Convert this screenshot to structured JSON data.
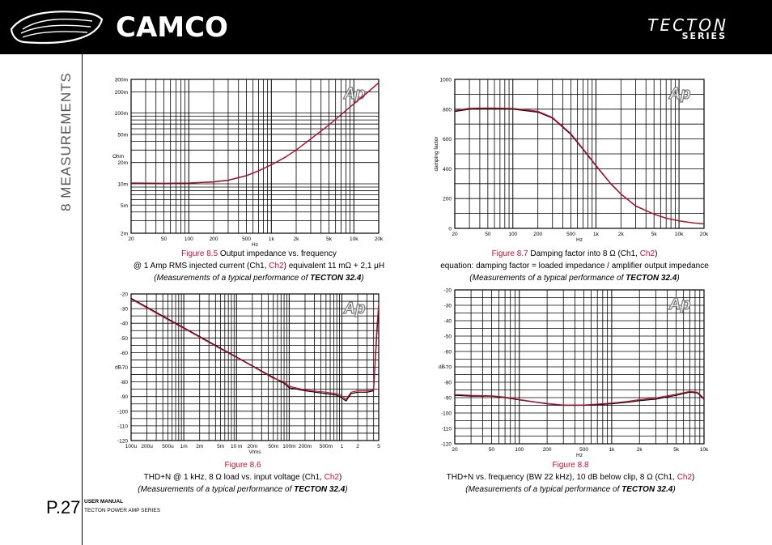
{
  "header": {
    "brand": "CAMCO",
    "series_title": "TECTON",
    "series_sub": "SERIES"
  },
  "section_title": "8 MEASUREMENTS",
  "page_number": "P.27",
  "footer": {
    "manual": "USER MANUAL",
    "manual_sub": "TECTON POWER AMP SERIES"
  },
  "colors": {
    "ch1": "#000000",
    "ch2": "#c8102e",
    "accent": "#c8102e"
  },
  "captions": {
    "fig85": {
      "fig": "Figure 8.5",
      "title": " Output impedance vs. frequency",
      "line2a": "@ 1 Amp RMS injected current (Ch1, ",
      "ch2": "Ch2",
      "line2b": ") equivalent 11 mΩ + 2,1 μH",
      "meas": "(Measurements of a typical performance of ",
      "model": "TECTON 32.4",
      "close": ")"
    },
    "fig87": {
      "fig": "Figure 8.7",
      "title": " Damping factor into 8 Ω (Ch1, ",
      "ch2": "Ch2",
      "title_end": ")",
      "line2": "equation: damping factor = loaded impedance / amplifier output impedance",
      "meas": "(Measurements of a typical performance of ",
      "model": "TECTON 32.4",
      "close": ")"
    },
    "fig86": {
      "fig": "Figure 8.6",
      "line2a": "THD+N @ 1 kHz, 8 Ω load  vs.  input voltage (Ch1, ",
      "ch2": "Ch2",
      "line2b": ")",
      "meas": "(Measurements of a typical performance of ",
      "model": "TECTON 32.4",
      "close": ")"
    },
    "fig88": {
      "fig": "Figure 8.8",
      "line2a": "THD+N vs. frequency (BW 22 kHz), 10 dB below clip, 8 Ω (Ch1, ",
      "ch2": "Ch2",
      "line2b": ")",
      "meas": "(Measurements of a typical performance of ",
      "model": "TECTON 32.4",
      "close": ")"
    }
  },
  "chart_data": [
    {
      "id": "fig85",
      "type": "line",
      "xscale": "log",
      "yscale": "log",
      "xlim": [
        20,
        20000
      ],
      "ylim": [
        0.002,
        0.3
      ],
      "xlabel": "Hz",
      "ylabel": "Ohm",
      "xticks": [
        [
          20,
          "20"
        ],
        [
          50,
          "50"
        ],
        [
          100,
          "100"
        ],
        [
          200,
          "200"
        ],
        [
          500,
          "500"
        ],
        [
          1000,
          "1k"
        ],
        [
          2000,
          "2k"
        ],
        [
          5000,
          "5k"
        ],
        [
          10000,
          "10k"
        ],
        [
          20000,
          "20k"
        ]
      ],
      "yticks": [
        [
          0.002,
          "2m"
        ],
        [
          0.005,
          "5m"
        ],
        [
          0.01,
          "10m"
        ],
        [
          0.02,
          "20m"
        ],
        [
          0.05,
          "50m"
        ],
        [
          0.1,
          "100m"
        ],
        [
          0.2,
          "200m"
        ],
        [
          0.3,
          "300m"
        ]
      ],
      "logo": "Ap",
      "series": [
        {
          "x": [
            20,
            50,
            100,
            200,
            300,
            500,
            700,
            1000,
            1500,
            2000,
            3000,
            5000,
            7000,
            10000,
            15000,
            20000
          ],
          "y": [
            0.0102,
            0.0101,
            0.0102,
            0.0106,
            0.0112,
            0.013,
            0.0152,
            0.0185,
            0.024,
            0.03,
            0.043,
            0.068,
            0.095,
            0.135,
            0.2,
            0.268
          ]
        },
        {
          "x": [
            20,
            50,
            100,
            200,
            300,
            500,
            700,
            1000,
            1500,
            2000,
            3000,
            5000,
            7000,
            10000,
            15000,
            20000
          ],
          "y": [
            0.0103,
            0.0102,
            0.0103,
            0.0107,
            0.0113,
            0.0131,
            0.0153,
            0.0186,
            0.0242,
            0.0302,
            0.0433,
            0.0684,
            0.0955,
            0.136,
            0.202,
            0.27
          ]
        }
      ]
    },
    {
      "id": "fig87",
      "type": "line",
      "xscale": "log",
      "yscale": "linear",
      "xlim": [
        20,
        20000
      ],
      "ylim": [
        0,
        1000
      ],
      "xlabel": "Hz",
      "ylabel": "damping factor",
      "xticks": [
        [
          20,
          "20"
        ],
        [
          50,
          "50"
        ],
        [
          100,
          "100"
        ],
        [
          200,
          "200"
        ],
        [
          500,
          "500"
        ],
        [
          1000,
          "1k"
        ],
        [
          2000,
          "2k"
        ],
        [
          5000,
          "5k"
        ],
        [
          10000,
          "10k"
        ],
        [
          20000,
          "20k"
        ]
      ],
      "yticks": [
        [
          0,
          "0"
        ],
        [
          200,
          "200"
        ],
        [
          400,
          "400"
        ],
        [
          600,
          "600"
        ],
        [
          800,
          "800"
        ],
        [
          1000,
          "1000"
        ]
      ],
      "logo": "Ap",
      "series": [
        {
          "x": [
            20,
            30,
            50,
            100,
            200,
            300,
            500,
            700,
            1000,
            1500,
            2000,
            3000,
            5000,
            7000,
            10000,
            15000,
            20000
          ],
          "y": [
            785,
            800,
            802,
            800,
            780,
            740,
            630,
            530,
            420,
            300,
            230,
            150,
            95,
            68,
            50,
            36,
            30
          ]
        },
        {
          "x": [
            20,
            30,
            50,
            100,
            200,
            300,
            500,
            700,
            1000,
            1500,
            2000,
            3000,
            5000,
            7000,
            10000,
            15000,
            20000
          ],
          "y": [
            790,
            806,
            808,
            805,
            786,
            745,
            636,
            535,
            424,
            303,
            232,
            152,
            96,
            69,
            51,
            37,
            31
          ]
        }
      ]
    },
    {
      "id": "fig86",
      "type": "line",
      "xscale": "log",
      "yscale": "linear",
      "xlim": [
        0.0001,
        5
      ],
      "ylim": [
        -120,
        -20
      ],
      "xlabel": "Vrms",
      "ylabel": "dB",
      "xticks": [
        [
          0.0001,
          "100u"
        ],
        [
          0.0002,
          "200u"
        ],
        [
          0.0005,
          "500u"
        ],
        [
          0.001,
          "1m"
        ],
        [
          0.002,
          "2m"
        ],
        [
          0.005,
          "5m"
        ],
        [
          0.01,
          "10 m"
        ],
        [
          0.02,
          "20m"
        ],
        [
          0.05,
          "50m"
        ],
        [
          0.1,
          "100m"
        ],
        [
          0.2,
          "200m"
        ],
        [
          0.5,
          "500m"
        ],
        [
          1,
          "1"
        ],
        [
          2,
          "2"
        ],
        [
          5,
          "5"
        ]
      ],
      "yticks": [
        [
          -20,
          "-20"
        ],
        [
          -30,
          "-30"
        ],
        [
          -40,
          "-40"
        ],
        [
          -50,
          "-50"
        ],
        [
          -60,
          "-60"
        ],
        [
          -70,
          "-70"
        ],
        [
          -80,
          "-80"
        ],
        [
          -90,
          "-90"
        ],
        [
          -100,
          "-100"
        ],
        [
          -110,
          "-110"
        ],
        [
          -120,
          "-120"
        ]
      ],
      "logo": "Ap",
      "series": [
        {
          "x": [
            0.0001,
            0.0002,
            0.0005,
            0.001,
            0.002,
            0.005,
            0.01,
            0.02,
            0.05,
            0.08,
            0.1,
            0.2,
            0.5,
            0.8,
            1,
            1.2,
            1.5,
            2,
            3,
            4,
            4.6,
            5
          ],
          "y": [
            -23,
            -29,
            -37,
            -43,
            -49,
            -57,
            -63,
            -69,
            -77,
            -81,
            -84,
            -86,
            -88,
            -89,
            -91,
            -93,
            -88,
            -87,
            -87,
            -86,
            -48,
            -28
          ]
        },
        {
          "x": [
            0.0001,
            0.0002,
            0.0005,
            0.001,
            0.002,
            0.005,
            0.01,
            0.02,
            0.05,
            0.08,
            0.1,
            0.2,
            0.5,
            0.8,
            1,
            1.2,
            1.5,
            2,
            3,
            4,
            4.6,
            5
          ],
          "y": [
            -23.5,
            -29.5,
            -37.5,
            -43.5,
            -49.5,
            -57.5,
            -63.3,
            -69.3,
            -77.5,
            -80,
            -83,
            -85.5,
            -87,
            -88,
            -89.5,
            -92,
            -87,
            -86,
            -86,
            -85.5,
            -44,
            -26
          ]
        }
      ]
    },
    {
      "id": "fig88",
      "type": "line",
      "xscale": "log",
      "yscale": "linear",
      "xlim": [
        20,
        10000
      ],
      "ylim": [
        -120,
        -20
      ],
      "xlabel": "Hz",
      "ylabel": "dB",
      "xticks": [
        [
          20,
          "20"
        ],
        [
          50,
          "50"
        ],
        [
          100,
          "100"
        ],
        [
          200,
          "200"
        ],
        [
          500,
          "500"
        ],
        [
          1000,
          "1k"
        ],
        [
          2000,
          "2k"
        ],
        [
          5000,
          "5k"
        ],
        [
          10000,
          "10k"
        ]
      ],
      "yticks": [
        [
          -20,
          "-20"
        ],
        [
          -30,
          "-30"
        ],
        [
          -40,
          "-40"
        ],
        [
          -50,
          "-50"
        ],
        [
          -60,
          "-60"
        ],
        [
          -70,
          "-70"
        ],
        [
          -80,
          "-80"
        ],
        [
          -90,
          "-90"
        ],
        [
          -100,
          "-100"
        ],
        [
          -110,
          "-110"
        ],
        [
          -120,
          "-120"
        ]
      ],
      "logo": "Ap",
      "series": [
        {
          "x": [
            20,
            30,
            50,
            70,
            100,
            150,
            200,
            300,
            500,
            700,
            1000,
            1500,
            2000,
            3000,
            5000,
            7000,
            8500,
            10000
          ],
          "y": [
            -88.5,
            -89,
            -89,
            -90,
            -91.5,
            -93,
            -94,
            -95,
            -95,
            -94.5,
            -94,
            -93,
            -92,
            -91,
            -88.5,
            -86.5,
            -87,
            -91
          ]
        },
        {
          "x": [
            20,
            30,
            50,
            70,
            100,
            150,
            200,
            300,
            500,
            700,
            1000,
            1500,
            2000,
            3000,
            5000,
            7000,
            8500,
            10000
          ],
          "y": [
            -88,
            -88.5,
            -88.8,
            -89.7,
            -91.2,
            -92.8,
            -93.8,
            -94.8,
            -94.8,
            -94.2,
            -93.5,
            -92.4,
            -91.3,
            -90.2,
            -87.8,
            -86,
            -86.5,
            -90.5
          ]
        }
      ]
    }
  ]
}
